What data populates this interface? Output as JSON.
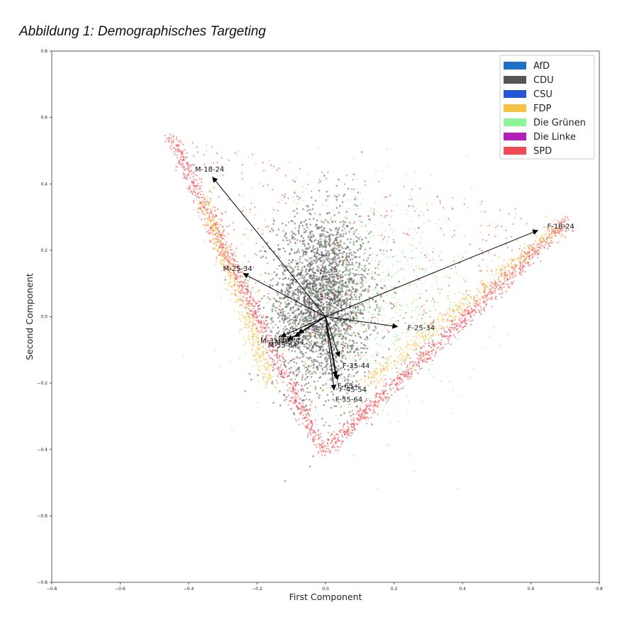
{
  "figure": {
    "title": "Abbildung 1: Demographisches Targeting"
  },
  "chart_data": {
    "type": "scatter",
    "xlabel": "First Component",
    "ylabel": "Second Component",
    "xlim": [
      -0.8,
      0.8
    ],
    "ylim": [
      -0.8,
      0.8
    ],
    "xticks": [
      "−0.8",
      "−0.6",
      "−0.4",
      "−0.2",
      "0.0",
      "0.2",
      "0.4",
      "0.6",
      "0.8"
    ],
    "yticks": [
      "0.8",
      "0.6",
      "0.4",
      "0.2",
      "0.0",
      "−0.2",
      "−0.4",
      "−0.6",
      "−0.8"
    ],
    "grid": false,
    "legend_position": "top-right",
    "series": [
      {
        "name": "AfD",
        "color": "#1f6fc4"
      },
      {
        "name": "CDU",
        "color": "#555555"
      },
      {
        "name": "CSU",
        "color": "#2457d6"
      },
      {
        "name": "FDP",
        "color": "#f5c242"
      },
      {
        "name": "Die Grünen",
        "color": "#8cf59a"
      },
      {
        "name": "Die Linke",
        "color": "#b31eb8"
      },
      {
        "name": "SPD",
        "color": "#f04b55"
      }
    ],
    "loadings": [
      {
        "label": "M-18-24",
        "x": -0.33,
        "y": 0.42
      },
      {
        "label": "M-25-34",
        "x": -0.24,
        "y": 0.13
      },
      {
        "label": "M-35-44",
        "x": -0.13,
        "y": -0.06
      },
      {
        "label": "M-65+",
        "x": -0.08,
        "y": -0.05
      },
      {
        "label": "M-55-64",
        "x": -0.11,
        "y": -0.07
      },
      {
        "label": "M-45-54",
        "x": -0.09,
        "y": -0.06
      },
      {
        "label": "F-18-24",
        "x": 0.62,
        "y": 0.26
      },
      {
        "label": "F-25-34",
        "x": 0.21,
        "y": -0.03
      },
      {
        "label": "F-35-44",
        "x": 0.04,
        "y": -0.12
      },
      {
        "label": "F-65+",
        "x": 0.03,
        "y": -0.18
      },
      {
        "label": "F-45-54",
        "x": 0.035,
        "y": -0.19
      },
      {
        "label": "F-55-64",
        "x": 0.025,
        "y": -0.22
      }
    ],
    "point_clusters": [
      {
        "series": "CDU",
        "shape": "cloud",
        "center": [
          -0.01,
          0.05
        ],
        "spread": [
          0.07,
          0.13
        ],
        "count": 2600
      },
      {
        "series": "Die Grünen",
        "shape": "cloud",
        "center": [
          0.12,
          0.03
        ],
        "spread": [
          0.16,
          0.16
        ],
        "count": 700
      },
      {
        "series": "SPD",
        "shape": "line",
        "from": [
          -0.45,
          0.54
        ],
        "to": [
          -0.01,
          -0.41
        ],
        "count": 900
      },
      {
        "series": "FDP",
        "shape": "line",
        "from": [
          -0.36,
          0.36
        ],
        "to": [
          -0.16,
          -0.2
        ],
        "count": 450
      },
      {
        "series": "SPD",
        "shape": "line",
        "from": [
          0.0,
          -0.4
        ],
        "to": [
          0.71,
          0.29
        ],
        "count": 900
      },
      {
        "series": "FDP",
        "shape": "line",
        "from": [
          0.12,
          -0.2
        ],
        "to": [
          0.68,
          0.27
        ],
        "count": 450
      },
      {
        "series": "SPD",
        "shape": "sparse",
        "count": 450
      },
      {
        "series": "FDP",
        "shape": "sparse",
        "count": 250
      }
    ]
  }
}
